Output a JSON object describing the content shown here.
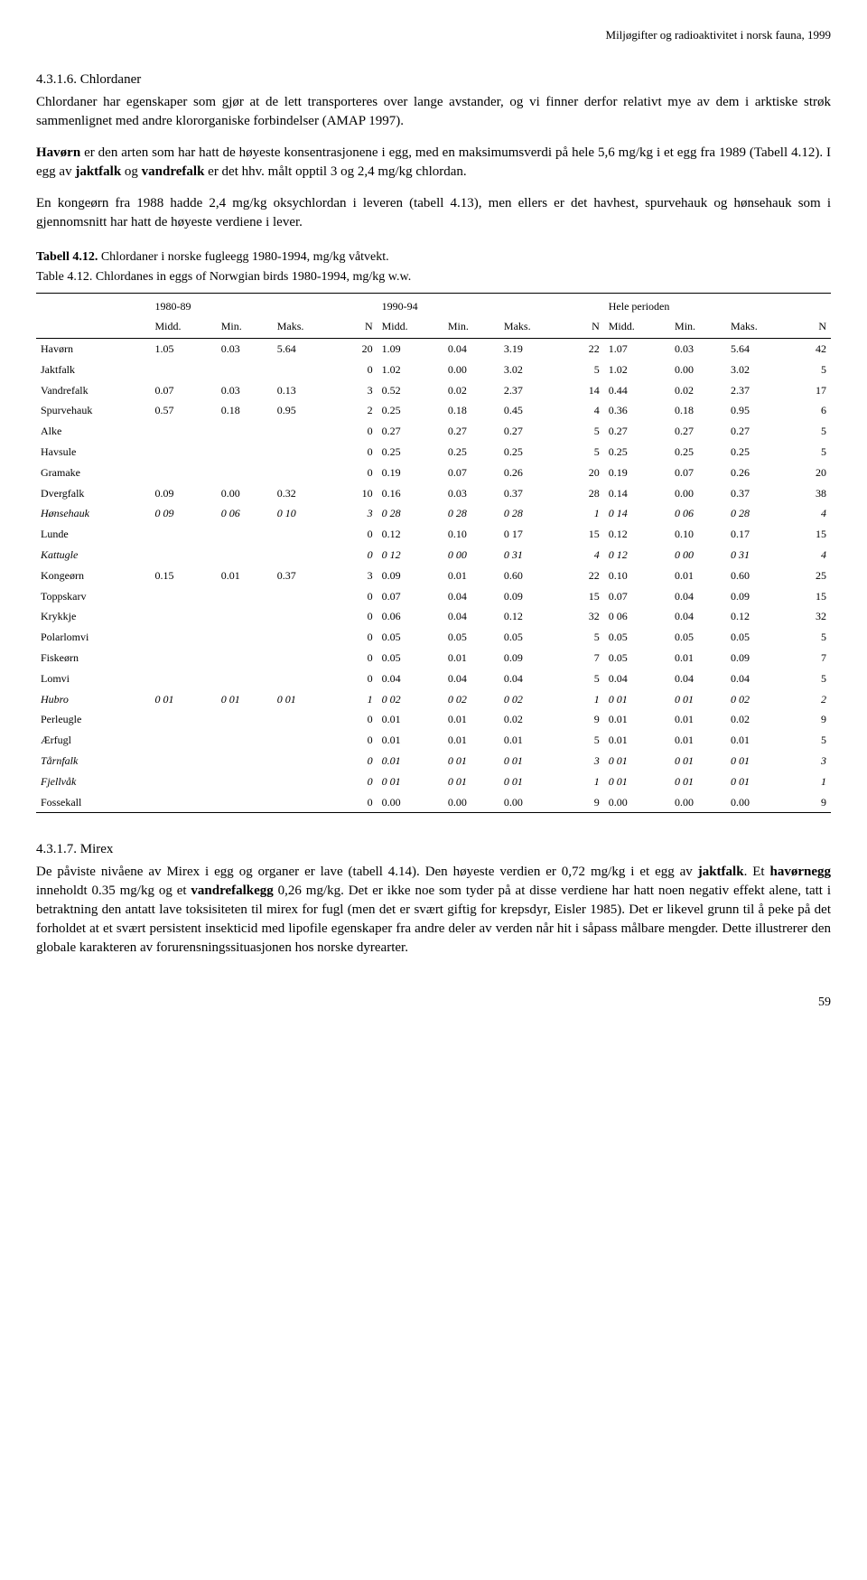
{
  "header": "Miljøgifter og radioaktivitet i norsk fauna, 1999",
  "sec1_num": "4.3.1.6. Chlordaner",
  "para1": "Chlordaner har egenskaper som gjør at de lett transporteres over lange avstander, og vi finner derfor relativt mye av dem i arktiske strøk sammenlignet med andre klororganiske forbindelser (AMAP 1997).",
  "para2a": "Havørn",
  "para2b": " er den arten som har hatt de høyeste konsentrasjonene i egg, med en maksimumsverdi på hele 5,6 mg/kg i et egg fra 1989 (Tabell 4.12). I egg av ",
  "para2c": "jaktfalk",
  "para2d": " og ",
  "para2e": "vandrefalk",
  "para2f": " er det hhv. målt opptil 3 og 2,4 mg/kg chlordan.",
  "para3": "En kongeørn fra 1988 hadde 2,4 mg/kg oksychlordan i leveren (tabell 4.13), men ellers er det havhest, spurvehauk og hønsehauk som i gjennomsnitt har hatt de høyeste verdiene i lever.",
  "table_caption_a": "Tabell 4.12.",
  "table_caption_b": "  Chlordaner i norske fugleegg 1980-1994, mg/kg våtvekt.",
  "table_sub_a": "Table 4.12.  Chlordanes in eggs of Norwgian birds 1980-1994, mg/kg w.w.",
  "periods": [
    "1980-89",
    "1990-94",
    "Hele perioden"
  ],
  "cols": [
    "Midd.",
    "Min.",
    "Maks.",
    "N",
    "Midd.",
    "Min.",
    "Maks.",
    "N",
    "Midd.",
    "Min.",
    "Maks.",
    "N"
  ],
  "rows": [
    {
      "n": "Havørn",
      "it": false,
      "v": [
        "1.05",
        "0.03",
        "5.64",
        "20",
        "1.09",
        "0.04",
        "3.19",
        "22",
        "1.07",
        "0.03",
        "5.64",
        "42"
      ]
    },
    {
      "n": "Jaktfalk",
      "it": false,
      "v": [
        "",
        "",
        "",
        "0",
        "1.02",
        "0.00",
        "3.02",
        "5",
        "1.02",
        "0.00",
        "3.02",
        "5"
      ]
    },
    {
      "n": "Vandrefalk",
      "it": false,
      "v": [
        "0.07",
        "0.03",
        "0.13",
        "3",
        "0.52",
        "0.02",
        "2.37",
        "14",
        "0.44",
        "0.02",
        "2.37",
        "17"
      ]
    },
    {
      "n": "Spurvehauk",
      "it": false,
      "v": [
        "0.57",
        "0.18",
        "0.95",
        "2",
        "0.25",
        "0.18",
        "0.45",
        "4",
        "0.36",
        "0.18",
        "0.95",
        "6"
      ]
    },
    {
      "n": "Alke",
      "it": false,
      "v": [
        "",
        "",
        "",
        "0",
        "0.27",
        "0.27",
        "0.27",
        "5",
        "0.27",
        "0.27",
        "0.27",
        "5"
      ]
    },
    {
      "n": "Havsule",
      "it": false,
      "v": [
        "",
        "",
        "",
        "0",
        "0.25",
        "0.25",
        "0.25",
        "5",
        "0.25",
        "0.25",
        "0.25",
        "5"
      ]
    },
    {
      "n": "Gramake",
      "it": false,
      "v": [
        "",
        "",
        "",
        "0",
        "0.19",
        "0.07",
        "0.26",
        "20",
        "0.19",
        "0.07",
        "0.26",
        "20"
      ]
    },
    {
      "n": "Dvergfalk",
      "it": false,
      "v": [
        "0.09",
        "0.00",
        "0.32",
        "10",
        "0.16",
        "0.03",
        "0.37",
        "28",
        "0.14",
        "0.00",
        "0.37",
        "38"
      ]
    },
    {
      "n": "Hønsehauk",
      "it": true,
      "v": [
        "0 09",
        "0 06",
        "0 10",
        "3",
        "0 28",
        "0 28",
        "0 28",
        "1",
        "0 14",
        "0 06",
        "0 28",
        "4"
      ]
    },
    {
      "n": "Lunde",
      "it": false,
      "v": [
        "",
        "",
        "",
        "0",
        "0.12",
        "0.10",
        "0 17",
        "15",
        "0.12",
        "0.10",
        "0.17",
        "15"
      ]
    },
    {
      "n": "Kattugle",
      "it": true,
      "v": [
        "",
        "",
        "",
        "0",
        "0 12",
        "0 00",
        "0 31",
        "4",
        "0 12",
        "0 00",
        "0 31",
        "4"
      ]
    },
    {
      "n": "Kongeørn",
      "it": false,
      "v": [
        "0.15",
        "0.01",
        "0.37",
        "3",
        "0.09",
        "0.01",
        "0.60",
        "22",
        "0.10",
        "0.01",
        "0.60",
        "25"
      ]
    },
    {
      "n": "Toppskarv",
      "it": false,
      "v": [
        "",
        "",
        "",
        "0",
        "0.07",
        "0.04",
        "0.09",
        "15",
        "0.07",
        "0.04",
        "0.09",
        "15"
      ]
    },
    {
      "n": "Krykkje",
      "it": false,
      "v": [
        "",
        "",
        "",
        "0",
        "0.06",
        "0.04",
        "0.12",
        "32",
        "0 06",
        "0.04",
        "0.12",
        "32"
      ]
    },
    {
      "n": "Polarlomvi",
      "it": false,
      "v": [
        "",
        "",
        "",
        "0",
        "0.05",
        "0.05",
        "0.05",
        "5",
        "0.05",
        "0.05",
        "0.05",
        "5"
      ]
    },
    {
      "n": "Fiskeørn",
      "it": false,
      "v": [
        "",
        "",
        "",
        "0",
        "0.05",
        "0.01",
        "0.09",
        "7",
        "0.05",
        "0.01",
        "0.09",
        "7"
      ]
    },
    {
      "n": "Lomvi",
      "it": false,
      "v": [
        "",
        "",
        "",
        "0",
        "0.04",
        "0.04",
        "0.04",
        "5",
        "0.04",
        "0.04",
        "0.04",
        "5"
      ]
    },
    {
      "n": "Hubro",
      "it": true,
      "v": [
        "0 01",
        "0 01",
        "0 01",
        "1",
        "0 02",
        "0 02",
        "0 02",
        "1",
        "0 01",
        "0 01",
        "0 02",
        "2"
      ]
    },
    {
      "n": "Perleugle",
      "it": false,
      "v": [
        "",
        "",
        "",
        "0",
        "0.01",
        "0.01",
        "0.02",
        "9",
        "0.01",
        "0.01",
        "0.02",
        "9"
      ]
    },
    {
      "n": "Ærfugl",
      "it": false,
      "v": [
        "",
        "",
        "",
        "0",
        "0.01",
        "0.01",
        "0.01",
        "5",
        "0.01",
        "0.01",
        "0.01",
        "5"
      ]
    },
    {
      "n": "Tårnfalk",
      "it": true,
      "v": [
        "",
        "",
        "",
        "0",
        "0.01",
        "0 01",
        "0 01",
        "3",
        "0 01",
        "0 01",
        "0 01",
        "3"
      ]
    },
    {
      "n": "Fjellvåk",
      "it": true,
      "v": [
        "",
        "",
        "",
        "0",
        "0 01",
        "0 01",
        "0 01",
        "1",
        "0 01",
        "0 01",
        "0 01",
        "1"
      ]
    },
    {
      "n": "Fossekall",
      "it": false,
      "v": [
        "",
        "",
        "",
        "0",
        "0.00",
        "0.00",
        "0.00",
        "9",
        "0.00",
        "0.00",
        "0.00",
        "9"
      ]
    }
  ],
  "sec2_num": "4.3.1.7. Mirex",
  "para4a": "De påviste nivåene av Mirex i egg og organer er lave (tabell 4.14). Den høyeste verdien er 0,72 mg/kg i et egg av ",
  "para4b": "jaktfalk",
  "para4c": ". Et ",
  "para4d": "havørnegg",
  "para4e": " inneholdt 0.35 mg/kg og et ",
  "para4f": "vandrefalkegg",
  "para4g": " 0,26 mg/kg. Det er ikke noe som tyder på at disse verdiene har hatt noen negativ effekt alene, tatt i betraktning den antatt lave toksisiteten til mirex for fugl (men det er svært giftig for krepsdyr, Eisler 1985). Det er likevel grunn til å peke på det forholdet at et svært persistent insekticid med lipofile egenskaper fra andre deler av verden når hit i såpass målbare mengder. Dette illustrerer den globale karakteren av forurensningssituasjonen hos norske dyrearter.",
  "page_num": "59"
}
